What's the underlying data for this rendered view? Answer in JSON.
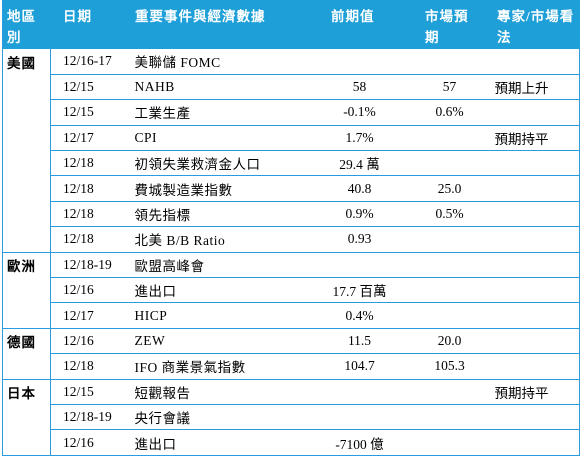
{
  "headers": [
    "地區別",
    "日期",
    "重要事件與經濟數據",
    "前期值",
    "市場預期",
    "專家/市場看法"
  ],
  "header_color": "#1e9fd8",
  "border_color": "#2b9be0",
  "rows": [
    {
      "region": "美國",
      "date": "12/16-17",
      "event": "美聯儲 FOMC",
      "prev": "",
      "exp": "",
      "view": ""
    },
    {
      "region": "",
      "date": "12/15",
      "event": "NAHB",
      "prev": "58",
      "exp": "57",
      "view": "預期上升"
    },
    {
      "region": "",
      "date": "12/15",
      "event": "工業生產",
      "prev": "-0.1%",
      "exp": "0.6%",
      "view": ""
    },
    {
      "region": "",
      "date": "12/17",
      "event": "CPI",
      "prev": "1.7%",
      "exp": "",
      "view": "預期持平"
    },
    {
      "region": "",
      "date": "12/18",
      "event": "初領失業救濟金人口",
      "prev": "29.4 萬",
      "exp": "",
      "view": ""
    },
    {
      "region": "",
      "date": "12/18",
      "event": "費城製造業指數",
      "prev": "40.8",
      "exp": "25.0",
      "view": ""
    },
    {
      "region": "",
      "date": "12/18",
      "event": "領先指標",
      "prev": "0.9%",
      "exp": "0.5%",
      "view": ""
    },
    {
      "region": "",
      "date": "12/18",
      "event": "北美 B/B Ratio",
      "prev": "0.93",
      "exp": "",
      "view": ""
    },
    {
      "region": "歐洲",
      "date": "12/18-19",
      "event": "歐盟高峰會",
      "prev": "",
      "exp": "",
      "view": ""
    },
    {
      "region": "",
      "date": "12/16",
      "event": "進出口",
      "prev": "17.7 百萬",
      "exp": "",
      "view": ""
    },
    {
      "region": "",
      "date": "12/17",
      "event": "HICP",
      "prev": "0.4%",
      "exp": "",
      "view": ""
    },
    {
      "region": "德國",
      "date": "12/16",
      "event": "ZEW",
      "prev": "11.5",
      "exp": "20.0",
      "view": ""
    },
    {
      "region": "",
      "date": "12/18",
      "event": "IFO 商業景氣指數",
      "prev": "104.7",
      "exp": "105.3",
      "view": ""
    },
    {
      "region": "日本",
      "date": "12/15",
      "event": "短觀報告",
      "prev": "",
      "exp": "",
      "view": "預期持平"
    },
    {
      "region": "",
      "date": "12/18-19",
      "event": "央行會議",
      "prev": "",
      "exp": "",
      "view": ""
    },
    {
      "region": "",
      "date": "12/16",
      "event": "進出口",
      "prev": "-7100 億",
      "exp": "",
      "view": ""
    }
  ]
}
